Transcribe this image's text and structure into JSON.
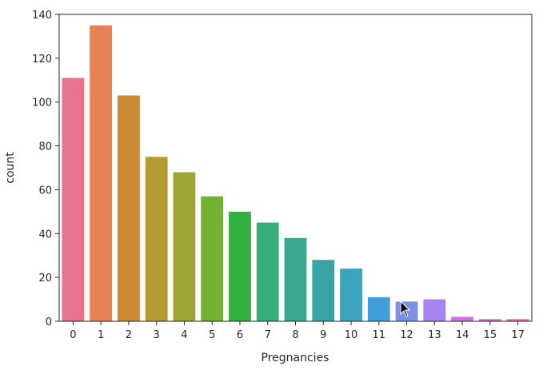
{
  "chart_data": {
    "type": "bar",
    "title": "",
    "xlabel": "Pregnancies",
    "ylabel": "count",
    "ylim": [
      0,
      140
    ],
    "yticks": [
      0,
      20,
      40,
      60,
      80,
      100,
      120,
      140
    ],
    "categories": [
      "0",
      "1",
      "2",
      "3",
      "4",
      "5",
      "6",
      "7",
      "8",
      "9",
      "10",
      "11",
      "12",
      "13",
      "14",
      "15",
      "17"
    ],
    "values": [
      111,
      135,
      103,
      75,
      68,
      57,
      50,
      45,
      38,
      28,
      24,
      11,
      9,
      10,
      2,
      1,
      1
    ],
    "colors": [
      "#e8738f",
      "#e58256",
      "#cc8a35",
      "#b39b32",
      "#9ba732",
      "#74b034",
      "#33b03f",
      "#36ae7a",
      "#38a88f",
      "#39a4a5",
      "#3ba3bd",
      "#3f9dd9",
      "#7b91e8",
      "#a883ee",
      "#cf6fe8",
      "#e06cd0",
      "#e66fb7"
    ]
  }
}
